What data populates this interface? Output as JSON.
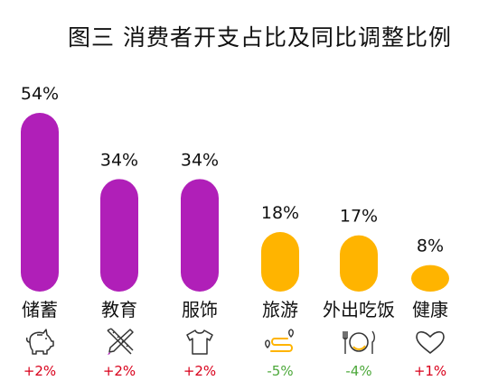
{
  "title": "图三 消费者开支占比及同比调整比例",
  "colors": {
    "purple": "#b01fb8",
    "orange": "#ffb400",
    "positive": "#d9001b",
    "negative": "#4ca83a",
    "text": "#111111",
    "icon": "#333333"
  },
  "chart_data": {
    "type": "bar",
    "title": "图三 消费者开支占比及同比调整比例",
    "categories": [
      "储蓄",
      "教育",
      "服饰",
      "旅游",
      "外出吃饭",
      "健康"
    ],
    "values": [
      54,
      34,
      34,
      18,
      17,
      8
    ],
    "value_labels": [
      "54%",
      "34%",
      "34%",
      "18%",
      "17%",
      "8%"
    ],
    "changes": [
      "+2%",
      "+2%",
      "+2%",
      "-5%",
      "-4%",
      "+1%"
    ],
    "bar_colors": [
      "#b01fb8",
      "#b01fb8",
      "#b01fb8",
      "#ffb400",
      "#ffb400",
      "#ffb400"
    ],
    "icons": [
      "piggy-bank-icon",
      "pencil-ruler-icon",
      "tshirt-icon",
      "route-icon",
      "plate-cutlery-icon",
      "heart-icon"
    ],
    "ylim": [
      0,
      54
    ]
  }
}
